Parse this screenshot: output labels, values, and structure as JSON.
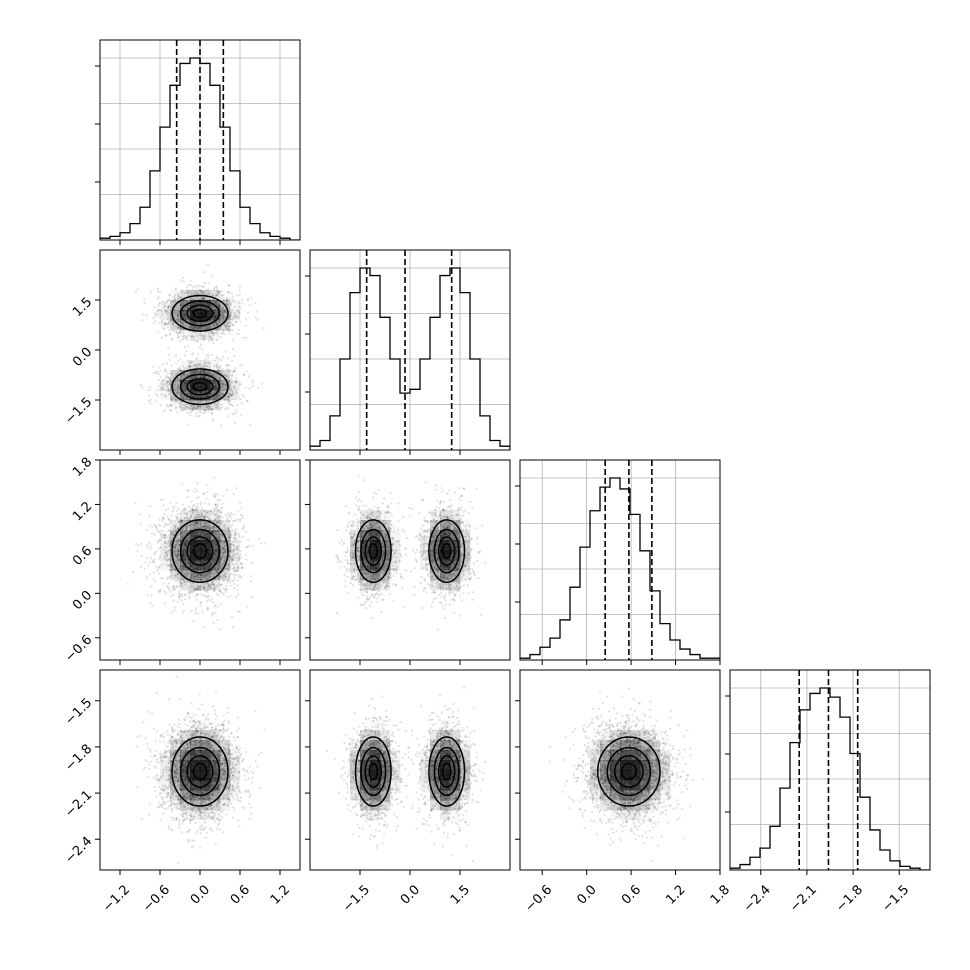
{
  "chart_data": {
    "type": "corner",
    "title": "",
    "parameters": [
      {
        "name": "",
        "range": [
          -1.5,
          1.5
        ],
        "ticks": [
          "−1.2",
          "−0.6",
          "0.0",
          "0.6",
          "1.2"
        ],
        "tick_values": [
          -1.2,
          -0.6,
          0.0,
          0.6,
          1.2
        ],
        "quantiles": [
          -0.35,
          0.0,
          0.35
        ]
      },
      {
        "name": "",
        "range": [
          -3.0,
          3.0
        ],
        "ticks": [
          "−1.5",
          "0.0",
          "1.5"
        ],
        "tick_values": [
          -1.5,
          0.0,
          1.5
        ],
        "quantiles": [
          -1.3,
          -0.15,
          1.25
        ]
      },
      {
        "name": "",
        "range": [
          -0.9,
          1.8
        ],
        "ticks": [
          "−0.6",
          "0.0",
          "0.6",
          "1.2",
          "1.8"
        ],
        "tick_values": [
          -0.6,
          0.0,
          0.6,
          1.2,
          1.8
        ],
        "quantiles": [
          0.25,
          0.57,
          0.88
        ]
      },
      {
        "name": "",
        "range": [
          -2.6,
          -1.3
        ],
        "ticks": [
          "−2.4",
          "−2.1",
          "−1.8",
          "−1.5"
        ],
        "tick_values": [
          -2.4,
          -2.1,
          -1.8,
          -1.5
        ],
        "quantiles": [
          -2.15,
          -1.96,
          -1.77
        ]
      }
    ],
    "histograms": [
      {
        "param": 0,
        "bins": 20,
        "counts": [
          1,
          2,
          4,
          9,
          18,
          38,
          62,
          85,
          97,
          100,
          97,
          85,
          62,
          38,
          18,
          9,
          4,
          2,
          1,
          0
        ]
      },
      {
        "param": 1,
        "bins": 20,
        "counts": [
          2,
          5,
          18,
          48,
          83,
          96,
          92,
          70,
          48,
          30,
          32,
          48,
          70,
          92,
          96,
          83,
          48,
          18,
          5,
          2
        ]
      },
      {
        "param": 2,
        "bins": 20,
        "counts": [
          1,
          3,
          7,
          12,
          22,
          40,
          62,
          82,
          95,
          100,
          94,
          80,
          60,
          38,
          20,
          11,
          6,
          3,
          1,
          1
        ]
      },
      {
        "param": 3,
        "bins": 20,
        "counts": [
          1,
          3,
          7,
          12,
          24,
          45,
          70,
          88,
          97,
          100,
          95,
          84,
          64,
          40,
          22,
          11,
          5,
          2,
          1,
          0
        ]
      }
    ],
    "grid": true,
    "contours": true
  }
}
